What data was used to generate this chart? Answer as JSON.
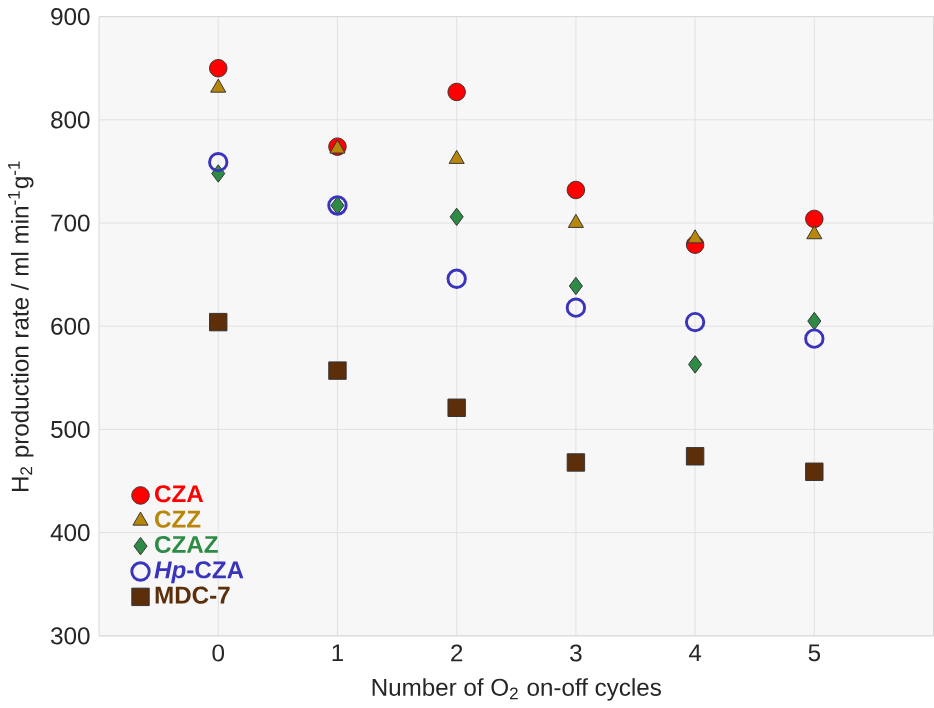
{
  "chart_data": {
    "type": "scatter",
    "xlabel": "Number of O$_{2}$ on-off cycles",
    "ylabel": "H$_{2}$ production rate  / ml min$^{-1}$g$^{-1}$",
    "x": [
      0,
      1,
      2,
      3,
      4,
      5
    ],
    "xlim": [
      -1,
      6
    ],
    "xticks": [
      0,
      1,
      2,
      3,
      4,
      5
    ],
    "ylim": [
      300,
      900
    ],
    "yticks": [
      300,
      400,
      500,
      600,
      700,
      800,
      900
    ],
    "grid": true,
    "legend": "bottom left",
    "series": [
      {
        "name": "CZA",
        "color": "#ff0000",
        "marker": "circle",
        "values": [
          850,
          774,
          827,
          732,
          679,
          704
        ]
      },
      {
        "name": "CZZ",
        "color": "#b8860b",
        "marker": "triangle",
        "values": [
          831,
          772,
          762,
          700,
          685,
          689
        ]
      },
      {
        "name": "CZAZ",
        "color": "#2e8b45",
        "marker": "diamond",
        "values": [
          748,
          717,
          706,
          639,
          563,
          605
        ]
      },
      {
        "name": "*Hp*-CZA",
        "color": "#3a33bb",
        "marker": "circle",
        "values": [
          759,
          717,
          646,
          618,
          604,
          588
        ]
      },
      {
        "name": "MDC-7",
        "color": "#5c2e0a",
        "marker": "square",
        "values": [
          604,
          557,
          521,
          468,
          474,
          459
        ]
      }
    ]
  }
}
